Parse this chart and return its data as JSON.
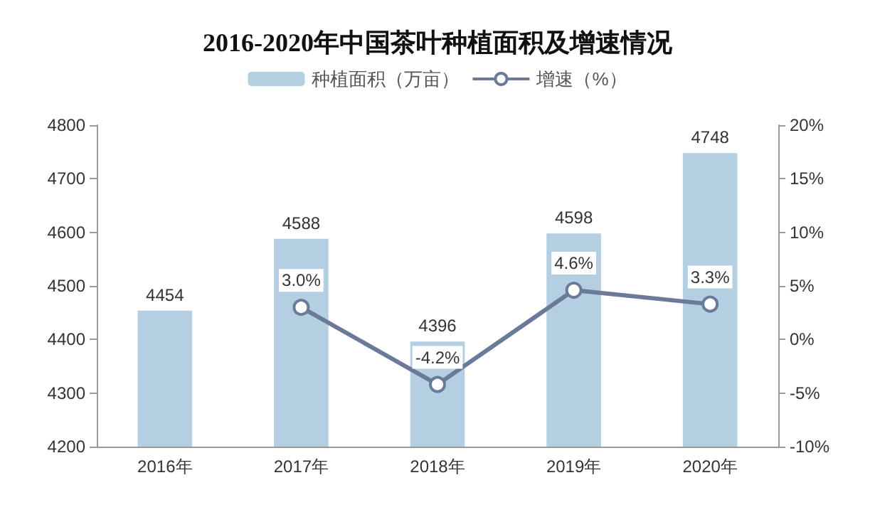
{
  "chart_data": {
    "type": "bar",
    "title": "2016-2020年中国茶叶种植面积及增速情况",
    "categories": [
      "2016年",
      "2017年",
      "2018年",
      "2019年",
      "2020年"
    ],
    "series": [
      {
        "name": "种植面积（万亩）",
        "color": "#b4cfe1",
        "values": [
          4454,
          4588,
          4396,
          4598,
          4748
        ],
        "value_labels": [
          "4454",
          "4588",
          "4396",
          "4598",
          "4748"
        ]
      },
      {
        "name": "增速（%）",
        "type": "line",
        "axis": "y2",
        "color": "#6b7a99",
        "values": [
          null,
          3.0,
          -4.2,
          4.6,
          3.3
        ],
        "value_labels": [
          null,
          "3.0%",
          "-4.2%",
          "4.6%",
          "3.3%"
        ]
      }
    ],
    "ylim": [
      4200,
      4800
    ],
    "yticks": [
      4200,
      4300,
      4400,
      4500,
      4600,
      4700,
      4800
    ],
    "y2lim": [
      -10,
      20
    ],
    "y2ticks": [
      {
        "value": -10,
        "label": "-10%"
      },
      {
        "value": -5,
        "label": "-5%"
      },
      {
        "value": 0,
        "label": "0%"
      },
      {
        "value": 5,
        "label": "5%"
      },
      {
        "value": 10,
        "label": "10%"
      },
      {
        "value": 15,
        "label": "15%"
      },
      {
        "value": 20,
        "label": "20%"
      }
    ],
    "legend": "top",
    "marker": "circle",
    "grid": false
  }
}
